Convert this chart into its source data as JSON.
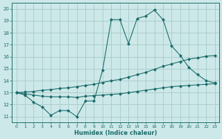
{
  "bg_color": "#cde8e8",
  "grid_color": "#aacece",
  "line_color": "#1a6b6b",
  "xlabel": "Humidex (Indice chaleur)",
  "ylim": [
    10.5,
    20.5
  ],
  "xlim": [
    -0.5,
    23.5
  ],
  "yticks": [
    11,
    12,
    13,
    14,
    15,
    16,
    17,
    18,
    19,
    20
  ],
  "xticks": [
    0,
    1,
    2,
    3,
    4,
    5,
    6,
    7,
    8,
    9,
    10,
    11,
    12,
    13,
    14,
    15,
    16,
    17,
    18,
    19,
    20,
    21,
    22,
    23
  ],
  "series1_x": [
    0,
    1,
    2,
    3,
    4,
    5,
    6,
    7,
    8,
    9,
    10,
    11,
    12,
    13,
    14,
    15,
    16,
    17,
    18,
    19,
    20,
    21,
    22,
    23
  ],
  "series1_y": [
    13.0,
    12.8,
    12.2,
    11.8,
    11.1,
    11.5,
    11.5,
    11.0,
    12.3,
    12.3,
    14.9,
    19.1,
    19.1,
    17.1,
    19.2,
    19.4,
    19.9,
    19.1,
    16.9,
    16.1,
    15.1,
    14.5,
    14.0,
    13.8
  ],
  "series2_x": [
    0,
    1,
    2,
    3,
    4,
    5,
    6,
    7,
    8,
    9,
    10,
    11,
    12,
    13,
    14,
    15,
    16,
    17,
    18,
    19,
    20,
    21,
    22,
    23
  ],
  "series2_y": [
    13.0,
    13.05,
    13.1,
    13.2,
    13.25,
    13.35,
    13.4,
    13.5,
    13.6,
    13.7,
    13.85,
    14.0,
    14.1,
    14.3,
    14.5,
    14.7,
    14.95,
    15.2,
    15.4,
    15.6,
    15.8,
    15.9,
    16.05,
    16.1
  ],
  "series3_x": [
    0,
    1,
    2,
    3,
    4,
    5,
    6,
    7,
    8,
    9,
    10,
    11,
    12,
    13,
    14,
    15,
    16,
    17,
    18,
    19,
    20,
    21,
    22,
    23
  ],
  "series3_y": [
    13.0,
    12.9,
    12.8,
    12.7,
    12.65,
    12.65,
    12.65,
    12.6,
    12.7,
    12.75,
    12.8,
    12.85,
    12.9,
    13.0,
    13.1,
    13.2,
    13.3,
    13.4,
    13.5,
    13.55,
    13.6,
    13.65,
    13.7,
    13.75
  ]
}
